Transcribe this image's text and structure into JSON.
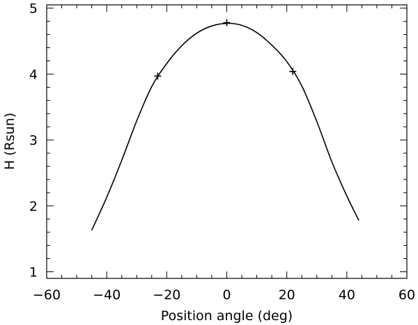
{
  "chart_data": {
    "type": "line",
    "title": "",
    "xlabel": "Position angle (deg)",
    "ylabel": "H (Rsun)",
    "xlim": [
      -60,
      60
    ],
    "ylim": [
      0.9,
      5.05
    ],
    "xticks": [
      -60,
      -40,
      -20,
      0,
      20,
      40,
      60
    ],
    "yticks": [
      1,
      2,
      3,
      4,
      5
    ],
    "xtick_labels": [
      "−60",
      "−40",
      "−20",
      "0",
      "20",
      "40",
      "60"
    ],
    "ytick_labels": [
      "1",
      "2",
      "3",
      "4",
      "5"
    ],
    "xminor_step": 5,
    "yminor_step": 0.2,
    "grid": false,
    "series": [
      {
        "style": "line",
        "color": "#000000",
        "x": [
          -45,
          -40,
          -35,
          -30,
          -25,
          -20,
          -15,
          -10,
          -5,
          0,
          5,
          10,
          15,
          20,
          25,
          30,
          35,
          40,
          44
        ],
        "y": [
          1.63,
          2.13,
          2.69,
          3.29,
          3.81,
          4.16,
          4.43,
          4.62,
          4.73,
          4.77,
          4.74,
          4.63,
          4.44,
          4.19,
          3.82,
          3.28,
          2.67,
          2.15,
          1.78
        ]
      },
      {
        "style": "markers",
        "marker": "plus",
        "color": "#000000",
        "x": [
          -23,
          0,
          22
        ],
        "y": [
          3.97,
          4.78,
          4.04
        ]
      }
    ]
  }
}
